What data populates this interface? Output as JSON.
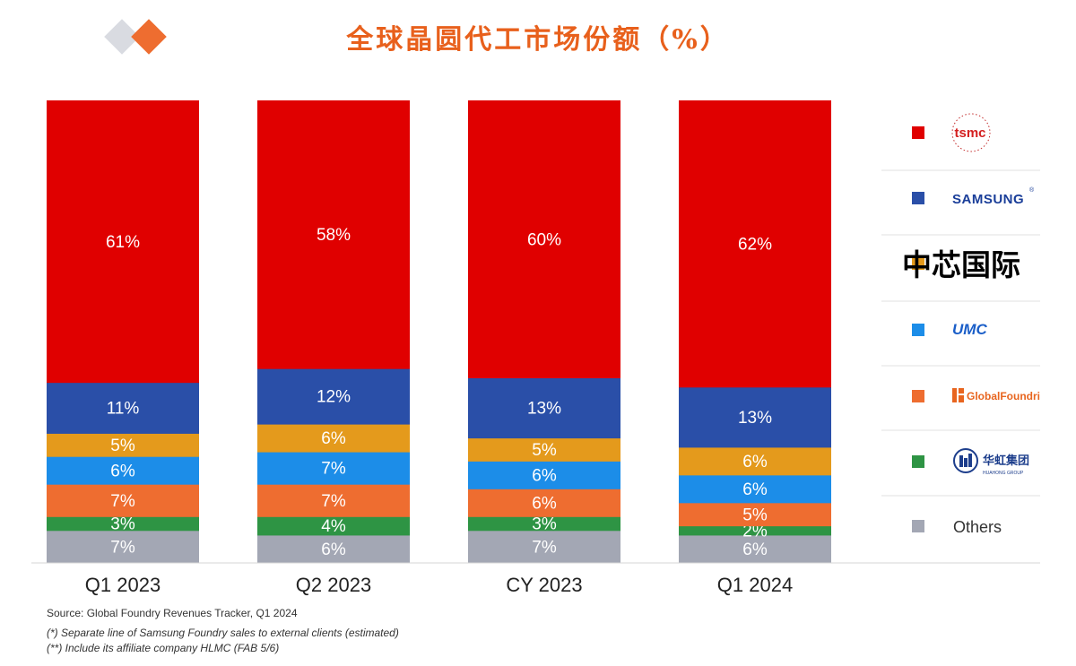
{
  "colors": {
    "tsmc": "#e00000",
    "samsung": "#2a4fa8",
    "smic": "#e49a1c",
    "umc": "#1c8de8",
    "globalfoundries": "#ee6d30",
    "huahong": "#2e9444",
    "others": "#a3a7b4",
    "title": "#e8601c"
  },
  "legend": {
    "tsmc": "tsmc",
    "samsung": "SAMSUNG",
    "samsung_mark": "®",
    "smic": "中芯国际",
    "umc": "UMC",
    "globalfoundries": "GlobalFoundries",
    "huahong": "华虹集团",
    "huahong_sub": "HUAHONG GROUP",
    "others": "Others"
  },
  "notes": {
    "source": "Source: Global Foundry Revenues Tracker, Q1 2024",
    "footnote1": "(*) Separate line of Samsung Foundry sales to external clients (estimated)",
    "footnote2": "(**) Include its affiliate company HLMC (FAB 5/6)"
  },
  "chart_data": {
    "type": "bar",
    "stacked": true,
    "normalized": true,
    "title": "全球晶圆代工市场份额（%）",
    "categories": [
      "Q1 2023",
      "Q2 2023",
      "CY 2023",
      "Q1 2024"
    ],
    "series": [
      {
        "name": "Others",
        "color_key": "others",
        "values": [
          7,
          6,
          7,
          6
        ]
      },
      {
        "name": "华虹集团",
        "color_key": "huahong",
        "values": [
          3,
          4,
          3,
          2
        ]
      },
      {
        "name": "GlobalFoundries",
        "color_key": "globalfoundries",
        "values": [
          7,
          7,
          6,
          5
        ]
      },
      {
        "name": "UMC",
        "color_key": "umc",
        "values": [
          6,
          7,
          6,
          6
        ]
      },
      {
        "name": "中芯国际",
        "color_key": "smic",
        "values": [
          5,
          6,
          5,
          6
        ]
      },
      {
        "name": "SAMSUNG",
        "color_key": "samsung",
        "values": [
          11,
          12,
          13,
          13
        ]
      },
      {
        "name": "tsmc",
        "color_key": "tsmc",
        "values": [
          61,
          58,
          60,
          62
        ]
      }
    ],
    "value_suffix": "%",
    "legend_position": "right"
  }
}
